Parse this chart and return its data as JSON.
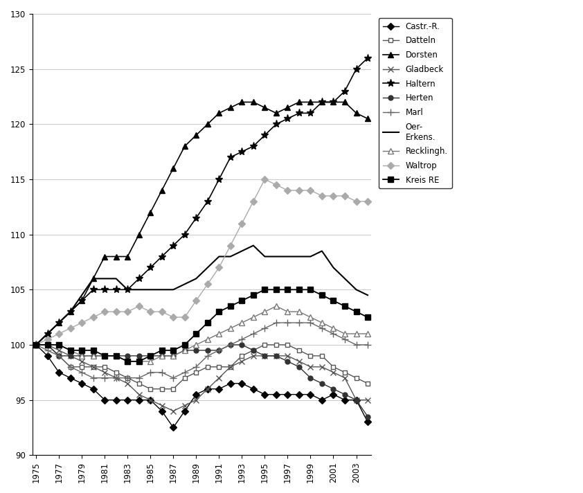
{
  "years": [
    1975,
    1976,
    1977,
    1978,
    1979,
    1980,
    1981,
    1982,
    1983,
    1984,
    1985,
    1986,
    1987,
    1988,
    1989,
    1990,
    1991,
    1992,
    1993,
    1994,
    1995,
    1996,
    1997,
    1998,
    1999,
    2000,
    2001,
    2002,
    2003,
    2004
  ],
  "series": [
    {
      "name": "Castr.-R.",
      "color": "#000000",
      "marker": "D",
      "markersize": 5,
      "markerfacecolor": "#000000",
      "linewidth": 1.0,
      "values": [
        100,
        99,
        97.5,
        97,
        96.5,
        96,
        95,
        95,
        95,
        95,
        95,
        94,
        92.5,
        94,
        95.5,
        96,
        96,
        96.5,
        96.5,
        96,
        95.5,
        95.5,
        95.5,
        95.5,
        95.5,
        95,
        95.5,
        95,
        95,
        93
      ]
    },
    {
      "name": "Datteln",
      "color": "#555555",
      "marker": "s",
      "markersize": 5,
      "markerfacecolor": "#ffffff",
      "linewidth": 1.0,
      "values": [
        100,
        100,
        99,
        98,
        98,
        98,
        98,
        97.5,
        97,
        96.5,
        96,
        96,
        96,
        97,
        97.5,
        98,
        98,
        98,
        99,
        99.5,
        100,
        100,
        100,
        99.5,
        99,
        99,
        98,
        97.5,
        97,
        96.5
      ]
    },
    {
      "name": "Dorsten",
      "color": "#000000",
      "marker": "^",
      "markersize": 6,
      "markerfacecolor": "#000000",
      "linewidth": 1.2,
      "values": [
        100,
        101,
        102,
        103,
        104,
        106,
        108,
        108,
        108,
        110,
        112,
        114,
        116,
        118,
        119,
        120,
        121,
        121.5,
        122,
        122,
        121.5,
        121,
        121.5,
        122,
        122,
        122,
        122,
        122,
        121,
        120.5
      ]
    },
    {
      "name": "Gladbeck",
      "color": "#555555",
      "marker": "x",
      "markersize": 6,
      "markerfacecolor": "#555555",
      "linewidth": 1.0,
      "values": [
        100,
        100,
        99.5,
        99,
        98.5,
        98,
        97.5,
        97,
        96.5,
        95.5,
        95,
        94.5,
        94,
        94.5,
        95,
        96,
        97,
        98,
        98.5,
        99,
        99,
        99,
        99,
        98.5,
        98,
        98,
        97.5,
        97,
        95,
        95
      ]
    },
    {
      "name": "Haltern",
      "color": "#000000",
      "marker": "*",
      "markersize": 8,
      "markerfacecolor": "#000000",
      "linewidth": 1.2,
      "values": [
        100,
        101,
        102,
        103,
        104,
        105,
        105,
        105,
        105,
        106,
        107,
        108,
        109,
        110,
        111.5,
        113,
        115,
        117,
        117.5,
        118,
        119,
        120,
        120.5,
        121,
        121,
        122,
        122,
        123,
        125,
        126
      ]
    },
    {
      "name": "Herten",
      "color": "#333333",
      "marker": "o",
      "markersize": 5,
      "markerfacecolor": "#333333",
      "linewidth": 1.0,
      "values": [
        100,
        100,
        99,
        99,
        99,
        99,
        99,
        99,
        99,
        99,
        99,
        99,
        99,
        99.5,
        99.5,
        99.5,
        99.5,
        100,
        100,
        99.5,
        99,
        99,
        98.5,
        98,
        97,
        96.5,
        96,
        95.5,
        95,
        93.5
      ]
    },
    {
      "name": "Marl",
      "color": "#666666",
      "marker": "+",
      "markersize": 7,
      "markerfacecolor": "#666666",
      "linewidth": 1.0,
      "values": [
        100,
        99.5,
        99,
        98,
        97.5,
        97,
        97,
        97,
        97,
        97,
        97.5,
        97.5,
        97,
        97.5,
        98,
        99,
        99.5,
        100,
        100.5,
        101,
        101.5,
        102,
        102,
        102,
        102,
        101.5,
        101,
        100.5,
        100,
        100
      ]
    },
    {
      "name": "Oer-\nErkens.",
      "color": "#000000",
      "marker": "None",
      "markersize": 0,
      "markerfacecolor": "#000000",
      "linewidth": 1.5,
      "values": [
        100,
        101,
        102,
        103,
        104.5,
        106,
        106,
        106,
        105,
        105,
        105,
        105,
        105,
        105.5,
        106,
        107,
        108,
        108,
        108.5,
        109,
        108,
        108,
        108,
        108,
        108,
        108.5,
        107,
        106,
        105,
        104.5
      ]
    },
    {
      "name": "Recklingh.",
      "color": "#777777",
      "marker": "^",
      "markersize": 6,
      "markerfacecolor": "#ffffff",
      "linewidth": 1.0,
      "values": [
        100,
        100,
        100,
        99.5,
        99,
        99,
        99,
        99,
        98.5,
        98.5,
        98.5,
        99,
        99,
        99.5,
        100,
        100.5,
        101,
        101.5,
        102,
        102.5,
        103,
        103.5,
        103,
        103,
        102.5,
        102,
        101.5,
        101,
        101,
        101
      ]
    },
    {
      "name": "Waltrop",
      "color": "#aaaaaa",
      "marker": "D",
      "markersize": 5,
      "markerfacecolor": "#aaaaaa",
      "linewidth": 1.0,
      "values": [
        100,
        100.5,
        101,
        101.5,
        102,
        102.5,
        103,
        103,
        103,
        103.5,
        103,
        103,
        102.5,
        102.5,
        104,
        105.5,
        107,
        109,
        111,
        113,
        115,
        114.5,
        114,
        114,
        114,
        113.5,
        113.5,
        113.5,
        113,
        113
      ]
    },
    {
      "name": "Kreis RE",
      "color": "#000000",
      "marker": "s",
      "markersize": 6,
      "markerfacecolor": "#000000",
      "linewidth": 1.3,
      "values": [
        100,
        100,
        100,
        99.5,
        99.5,
        99.5,
        99,
        99,
        98.5,
        98.5,
        99,
        99.5,
        99.5,
        100,
        101,
        102,
        103,
        103.5,
        104,
        104.5,
        105,
        105,
        105,
        105,
        105,
        104.5,
        104,
        103.5,
        103,
        102.5
      ]
    }
  ],
  "xlim_min": 1975,
  "xlim_max": 2004,
  "ylim_min": 90,
  "ylim_max": 130,
  "yticks": [
    90,
    95,
    100,
    105,
    110,
    115,
    120,
    125,
    130
  ],
  "xticks": [
    1975,
    1977,
    1979,
    1981,
    1983,
    1985,
    1987,
    1989,
    1991,
    1993,
    1995,
    1997,
    1999,
    2001,
    2003
  ],
  "grid_color": "#cccccc",
  "background_color": "#ffffff",
  "legend_labels": [
    "Castr.-R.",
    "Datteln",
    "Dorsten",
    "Gladbeck",
    "Haltern",
    "Herten",
    "Marl",
    "Oer-\nErkens.",
    "Recklingh.",
    "Waltrop",
    "Kreis RE"
  ]
}
